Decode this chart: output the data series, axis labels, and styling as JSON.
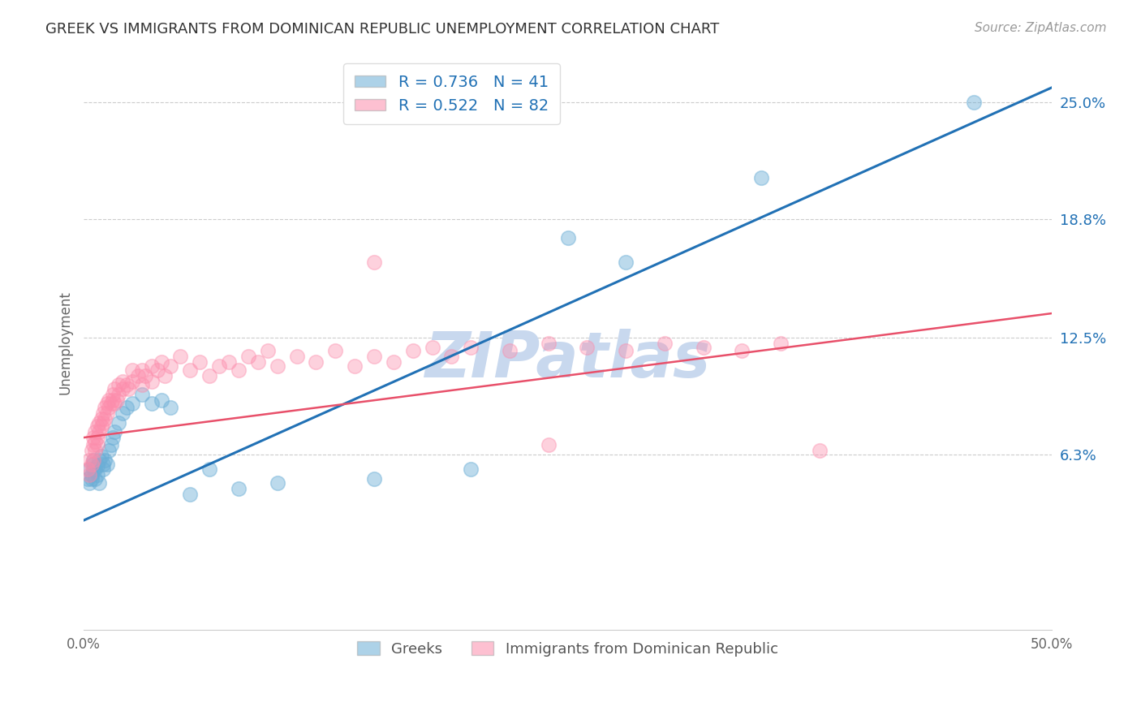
{
  "title": "GREEK VS IMMIGRANTS FROM DOMINICAN REPUBLIC UNEMPLOYMENT CORRELATION CHART",
  "source": "Source: ZipAtlas.com",
  "ylabel": "Unemployment",
  "xlim": [
    0.0,
    0.5
  ],
  "ylim": [
    -0.03,
    0.275
  ],
  "yticks": [
    0.063,
    0.125,
    0.188,
    0.25
  ],
  "ytick_labels": [
    "6.3%",
    "12.5%",
    "18.8%",
    "25.0%"
  ],
  "xticks": [
    0.0,
    0.1,
    0.2,
    0.3,
    0.4,
    0.5
  ],
  "xtick_labels": [
    "0.0%",
    "",
    "",
    "",
    "",
    "50.0%"
  ],
  "legend_r1": "R = 0.736",
  "legend_n1": "N = 41",
  "legend_r2": "R = 0.522",
  "legend_n2": "N = 82",
  "color_blue": "#6BAED6",
  "color_pink": "#FC8DAC",
  "color_line_blue": "#2171B5",
  "color_line_pink": "#E8506A",
  "watermark": "ZIPatlas",
  "watermark_color": "#C8D8EE",
  "blue_line": [
    [
      0.0,
      0.028
    ],
    [
      0.5,
      0.258
    ]
  ],
  "pink_line": [
    [
      0.0,
      0.072
    ],
    [
      0.5,
      0.138
    ]
  ],
  "scatter_blue": [
    [
      0.002,
      0.05
    ],
    [
      0.003,
      0.048
    ],
    [
      0.003,
      0.055
    ],
    [
      0.004,
      0.05
    ],
    [
      0.004,
      0.052
    ],
    [
      0.005,
      0.055
    ],
    [
      0.005,
      0.058
    ],
    [
      0.005,
      0.06
    ],
    [
      0.006,
      0.05
    ],
    [
      0.006,
      0.055
    ],
    [
      0.007,
      0.052
    ],
    [
      0.007,
      0.057
    ],
    [
      0.008,
      0.048
    ],
    [
      0.008,
      0.06
    ],
    [
      0.009,
      0.062
    ],
    [
      0.01,
      0.055
    ],
    [
      0.01,
      0.058
    ],
    [
      0.011,
      0.06
    ],
    [
      0.012,
      0.058
    ],
    [
      0.013,
      0.065
    ],
    [
      0.014,
      0.068
    ],
    [
      0.015,
      0.072
    ],
    [
      0.016,
      0.075
    ],
    [
      0.018,
      0.08
    ],
    [
      0.02,
      0.085
    ],
    [
      0.022,
      0.088
    ],
    [
      0.025,
      0.09
    ],
    [
      0.03,
      0.095
    ],
    [
      0.035,
      0.09
    ],
    [
      0.04,
      0.092
    ],
    [
      0.045,
      0.088
    ],
    [
      0.055,
      0.042
    ],
    [
      0.065,
      0.055
    ],
    [
      0.08,
      0.045
    ],
    [
      0.1,
      0.048
    ],
    [
      0.15,
      0.05
    ],
    [
      0.2,
      0.055
    ],
    [
      0.25,
      0.178
    ],
    [
      0.28,
      0.165
    ],
    [
      0.35,
      0.21
    ],
    [
      0.46,
      0.25
    ]
  ],
  "scatter_pink": [
    [
      0.002,
      0.055
    ],
    [
      0.003,
      0.052
    ],
    [
      0.003,
      0.06
    ],
    [
      0.004,
      0.058
    ],
    [
      0.004,
      0.065
    ],
    [
      0.005,
      0.06
    ],
    [
      0.005,
      0.068
    ],
    [
      0.005,
      0.072
    ],
    [
      0.006,
      0.065
    ],
    [
      0.006,
      0.07
    ],
    [
      0.006,
      0.075
    ],
    [
      0.007,
      0.068
    ],
    [
      0.007,
      0.072
    ],
    [
      0.007,
      0.078
    ],
    [
      0.008,
      0.075
    ],
    [
      0.008,
      0.08
    ],
    [
      0.009,
      0.078
    ],
    [
      0.009,
      0.082
    ],
    [
      0.01,
      0.08
    ],
    [
      0.01,
      0.085
    ],
    [
      0.011,
      0.082
    ],
    [
      0.011,
      0.088
    ],
    [
      0.012,
      0.085
    ],
    [
      0.012,
      0.09
    ],
    [
      0.013,
      0.088
    ],
    [
      0.013,
      0.092
    ],
    [
      0.014,
      0.09
    ],
    [
      0.015,
      0.092
    ],
    [
      0.015,
      0.095
    ],
    [
      0.016,
      0.09
    ],
    [
      0.016,
      0.098
    ],
    [
      0.017,
      0.092
    ],
    [
      0.018,
      0.095
    ],
    [
      0.018,
      0.1
    ],
    [
      0.02,
      0.098
    ],
    [
      0.02,
      0.102
    ],
    [
      0.022,
      0.1
    ],
    [
      0.023,
      0.098
    ],
    [
      0.025,
      0.102
    ],
    [
      0.025,
      0.108
    ],
    [
      0.028,
      0.105
    ],
    [
      0.03,
      0.1
    ],
    [
      0.03,
      0.108
    ],
    [
      0.032,
      0.105
    ],
    [
      0.035,
      0.11
    ],
    [
      0.035,
      0.102
    ],
    [
      0.038,
      0.108
    ],
    [
      0.04,
      0.112
    ],
    [
      0.042,
      0.105
    ],
    [
      0.045,
      0.11
    ],
    [
      0.05,
      0.115
    ],
    [
      0.055,
      0.108
    ],
    [
      0.06,
      0.112
    ],
    [
      0.065,
      0.105
    ],
    [
      0.07,
      0.11
    ],
    [
      0.075,
      0.112
    ],
    [
      0.08,
      0.108
    ],
    [
      0.085,
      0.115
    ],
    [
      0.09,
      0.112
    ],
    [
      0.095,
      0.118
    ],
    [
      0.1,
      0.11
    ],
    [
      0.11,
      0.115
    ],
    [
      0.12,
      0.112
    ],
    [
      0.13,
      0.118
    ],
    [
      0.14,
      0.11
    ],
    [
      0.15,
      0.115
    ],
    [
      0.16,
      0.112
    ],
    [
      0.17,
      0.118
    ],
    [
      0.18,
      0.12
    ],
    [
      0.19,
      0.115
    ],
    [
      0.2,
      0.12
    ],
    [
      0.22,
      0.118
    ],
    [
      0.24,
      0.122
    ],
    [
      0.26,
      0.12
    ],
    [
      0.28,
      0.118
    ],
    [
      0.3,
      0.122
    ],
    [
      0.32,
      0.12
    ],
    [
      0.34,
      0.118
    ],
    [
      0.36,
      0.122
    ],
    [
      0.15,
      0.165
    ],
    [
      0.24,
      0.068
    ],
    [
      0.38,
      0.065
    ]
  ]
}
